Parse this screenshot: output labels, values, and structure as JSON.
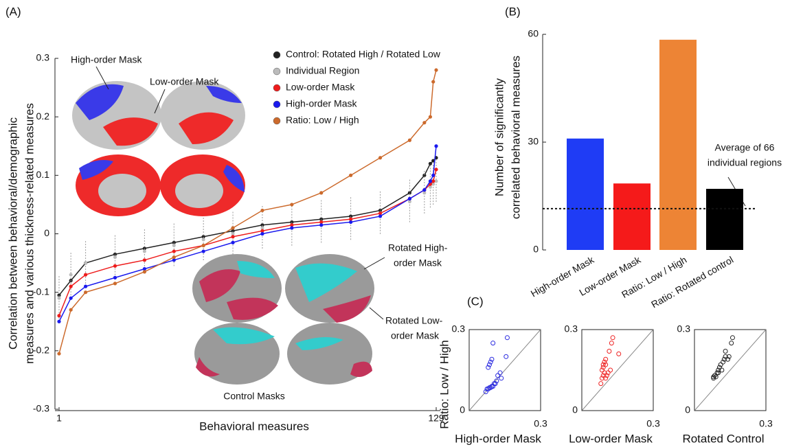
{
  "chart_data": [
    {
      "type": "line",
      "panel_label": "(A)",
      "xlabel": "Behavioral measures",
      "ylabel": [
        "Correlation between behavioral/demographic",
        "measures and various thickness-related measures"
      ],
      "xlim": [
        1,
        129
      ],
      "xticks": [
        1,
        129
      ],
      "ylim": [
        -0.3,
        0.3
      ],
      "yticks": [
        -0.3,
        -0.2,
        -0.1,
        0,
        0.1,
        0.2,
        0.3
      ],
      "x": [
        1,
        5,
        10,
        20,
        30,
        40,
        50,
        60,
        70,
        80,
        90,
        100,
        110,
        120,
        125,
        127,
        128,
        129
      ],
      "series": [
        {
          "name": "Control: Rotated High /  Rotated  Low",
          "color": "#222222",
          "values": [
            -0.105,
            -0.08,
            -0.05,
            -0.035,
            -0.025,
            -0.015,
            -0.005,
            0.005,
            0.015,
            0.02,
            0.025,
            0.03,
            0.04,
            0.07,
            0.1,
            0.12,
            0.125,
            0.13
          ]
        },
        {
          "name": "Individual Region",
          "color": "#bbbbbb",
          "values": [
            -0.11,
            -0.07,
            -0.05,
            -0.04,
            -0.03,
            -0.02,
            -0.01,
            0,
            0.01,
            0.015,
            0.02,
            0.025,
            0.035,
            0.055,
            0.07,
            0.08,
            0.085,
            0.09
          ]
        },
        {
          "name": "Low-order Mask",
          "color": "#ee1c1c",
          "values": [
            -0.14,
            -0.09,
            -0.07,
            -0.055,
            -0.045,
            -0.03,
            -0.02,
            -0.005,
            0.005,
            0.015,
            0.02,
            0.025,
            0.035,
            0.06,
            0.075,
            0.085,
            0.09,
            0.11
          ]
        },
        {
          "name": "High-order Mask",
          "color": "#1a1aee",
          "values": [
            -0.15,
            -0.11,
            -0.09,
            -0.075,
            -0.06,
            -0.045,
            -0.03,
            -0.015,
            0,
            0.01,
            0.015,
            0.02,
            0.03,
            0.06,
            0.075,
            0.09,
            0.1,
            0.15
          ]
        },
        {
          "name": "Ratio: Low / High",
          "color": "#cc6a2c",
          "values": [
            -0.205,
            -0.13,
            -0.1,
            -0.085,
            -0.065,
            -0.04,
            -0.02,
            0.01,
            0.04,
            0.05,
            0.07,
            0.1,
            0.13,
            0.16,
            0.19,
            0.2,
            0.26,
            0.28
          ]
        }
      ],
      "annotations": [
        [
          "High-order Mask"
        ],
        [
          "Low-order Mask"
        ],
        [
          "Rotated High-",
          "order Mask"
        ],
        [
          "Rotated Low-",
          "order Mask"
        ],
        [
          "Control Masks"
        ]
      ]
    },
    {
      "type": "bar",
      "panel_label": "(B)",
      "ylabel": [
        "Number of significantly",
        "correlated behavioral measures"
      ],
      "categories": [
        "High-order Mask",
        "Low-order Mask",
        "Ratio: Low / High",
        "Ratio: Rotated control"
      ],
      "values": [
        31,
        18.5,
        58.5,
        17
      ],
      "colors": [
        "#1f3cf5",
        "#f51a1a",
        "#ed8435",
        "#000000"
      ],
      "ylim": [
        0,
        60
      ],
      "yticks": [
        0,
        30,
        60
      ],
      "reference": {
        "value": 11.5,
        "label": [
          "Average of 66",
          "individual regions"
        ]
      }
    },
    {
      "type": "scatter",
      "panel_label": "(C)",
      "ylabel": "Ratio: Low / High",
      "xlabel": "High-order Mask",
      "color": "#2a2ae0",
      "xlim": [
        0,
        0.3
      ],
      "ylim": [
        0,
        0.3
      ],
      "xticks": [
        0.3
      ],
      "yticks": [
        0,
        0.3
      ],
      "x": [
        0.07,
        0.075,
        0.08,
        0.085,
        0.09,
        0.095,
        0.1,
        0.105,
        0.11,
        0.115,
        0.12,
        0.13,
        0.135,
        0.085,
        0.09,
        0.095,
        0.08,
        0.1,
        0.155,
        0.16
      ],
      "y": [
        0.07,
        0.08,
        0.08,
        0.085,
        0.085,
        0.09,
        0.09,
        0.1,
        0.1,
        0.11,
        0.13,
        0.14,
        0.12,
        0.17,
        0.18,
        0.19,
        0.16,
        0.25,
        0.2,
        0.27
      ]
    },
    {
      "type": "scatter",
      "xlabel": "Low-order Mask",
      "color": "#ee2222",
      "xlim": [
        0,
        0.3
      ],
      "ylim": [
        0,
        0.3
      ],
      "xticks": [
        0.3
      ],
      "yticks": [
        0,
        0.3
      ],
      "x": [
        0.08,
        0.085,
        0.09,
        0.095,
        0.1,
        0.105,
        0.11,
        0.12,
        0.085,
        0.09,
        0.095,
        0.1,
        0.1,
        0.115,
        0.125,
        0.13,
        0.155,
        0.09
      ],
      "y": [
        0.1,
        0.12,
        0.13,
        0.14,
        0.12,
        0.13,
        0.14,
        0.15,
        0.15,
        0.17,
        0.18,
        0.19,
        0.17,
        0.22,
        0.25,
        0.27,
        0.21,
        0.16
      ]
    },
    {
      "type": "scatter",
      "xlabel": "Rotated Control",
      "color": "#222222",
      "xlim": [
        0,
        0.3
      ],
      "ylim": [
        0,
        0.3
      ],
      "xticks": [
        0.3
      ],
      "yticks": [
        0,
        0.3
      ],
      "x": [
        0.08,
        0.085,
        0.09,
        0.095,
        0.1,
        0.105,
        0.11,
        0.12,
        0.125,
        0.13,
        0.14,
        0.145,
        0.115,
        0.16,
        0.155,
        0.13,
        0.08,
        0.1
      ],
      "y": [
        0.12,
        0.13,
        0.125,
        0.14,
        0.15,
        0.16,
        0.17,
        0.18,
        0.19,
        0.2,
        0.19,
        0.2,
        0.15,
        0.27,
        0.25,
        0.22,
        0.125,
        0.14
      ]
    }
  ]
}
